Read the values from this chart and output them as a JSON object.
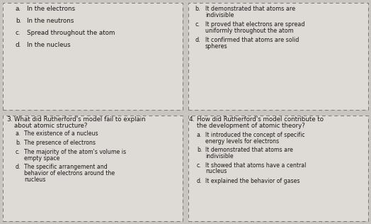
{
  "background_color": "#c8c4c0",
  "card_bg": "#dedad6",
  "border_color": "#888888",
  "text_color": "#1a1a1a",
  "top_left_options": [
    [
      "a.",
      "In the electrons"
    ],
    [
      "b.",
      "In the neutrons"
    ],
    [
      "c.",
      "Spread throughout the atom"
    ],
    [
      "d.",
      "In the nucleus"
    ]
  ],
  "top_right_options": [
    [
      "b.",
      "It demonstrated that atoms are\nindivisible"
    ],
    [
      "c.",
      "It proved that electrons are spread\nuniformly throughout the atom"
    ],
    [
      "d.",
      "It confirmed that atoms are solid\nspheres"
    ]
  ],
  "q3_number": "3.",
  "q3_question": "What did Rutherford's model fail to explain\nabout atomic structure?",
  "q3_options": [
    [
      "a.",
      "The existence of a nucleus"
    ],
    [
      "b.",
      "The presence of electrons"
    ],
    [
      "c.",
      "The majority of the atom's volume is\nempty space"
    ],
    [
      "d.",
      "The specific arrangement and\nbehavior of electrons around the\nnucleus"
    ]
  ],
  "q4_number": "4.",
  "q4_question": "How did Rutherford's model contribute to\nthe development of atomic theory?",
  "q4_options": [
    [
      "a.",
      "It introduced the concept of specific\nenergy levels for electrons"
    ],
    [
      "b.",
      "It demonstrated that atoms are\nindivisible"
    ],
    [
      "c.",
      "It showed that atoms have a central\nnucleus"
    ],
    [
      "d.",
      "It explained the behavior of gases"
    ]
  ],
  "font_size_q": 6.2,
  "font_size_opt": 5.8,
  "font_size_num": 6.5
}
